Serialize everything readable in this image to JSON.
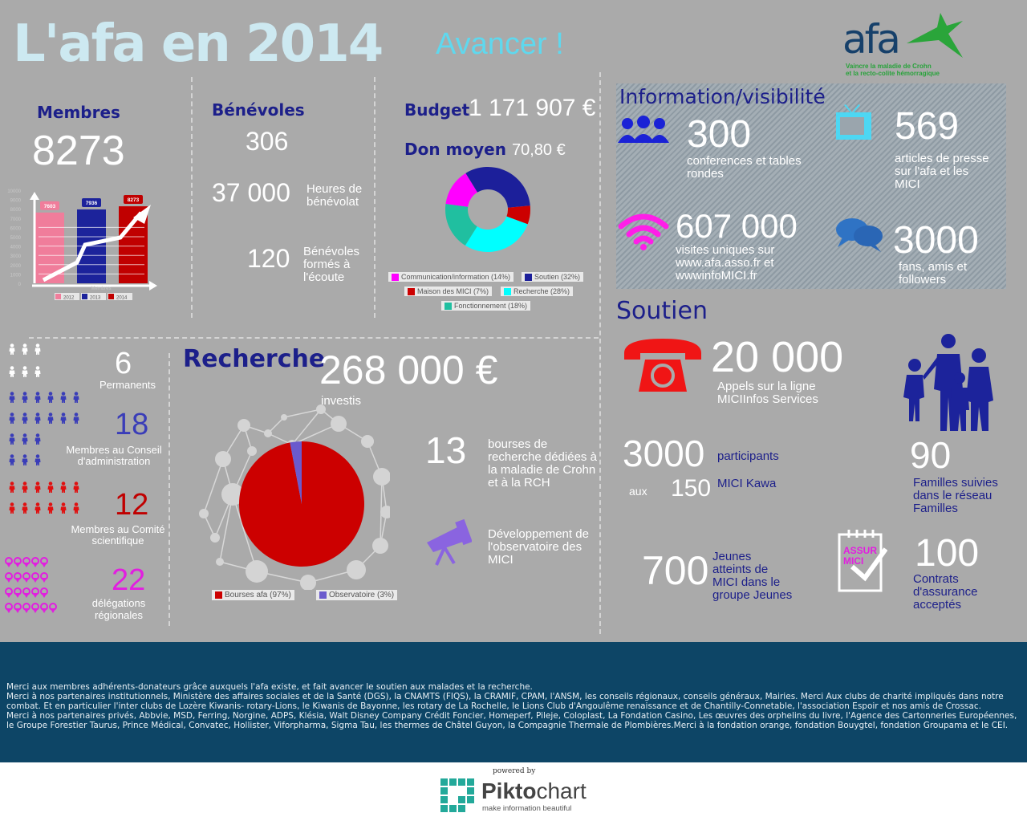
{
  "header": {
    "title": "L'afa en 2014",
    "tagline": "Avancer !"
  },
  "logo": {
    "name": "afa",
    "subtitle_line1": "Vaincre la maladie de Crohn",
    "subtitle_line2": "et la recto-colite hémorragique"
  },
  "membres": {
    "heading": "Membres",
    "value": "8273"
  },
  "benevoles": {
    "heading": "Bénévoles",
    "count": "306",
    "hours_value": "37 000",
    "hours_label": "Heures de bénévolat",
    "trained_value": "120",
    "trained_label": "Bénévoles formés à l'écoute"
  },
  "budget": {
    "heading": "Budget",
    "value": "1 171 907 €",
    "don_heading": "Don moyen",
    "don_value": "70,80 €"
  },
  "information": {
    "heading": "Information/visibilité",
    "items": [
      {
        "value": "300",
        "label": "conferences et tables rondes",
        "icon": "people-icon"
      },
      {
        "value": "569",
        "label": "articles de presse sur l'afa et les MICI",
        "icon": "tv-icon"
      },
      {
        "value": "607 000",
        "label": "visites uniques sur www.afa.asso.fr et wwwinfoMICI.fr",
        "icon": "wifi-icon"
      },
      {
        "value": "3000",
        "label": "fans, amis et followers",
        "icon": "chat-icon"
      }
    ]
  },
  "staff": [
    {
      "value": "6",
      "label": "Permanents",
      "color": "#ffffff"
    },
    {
      "value": "18",
      "label": "Membres au Conseil d'administration",
      "color": "#3a3db8"
    },
    {
      "value": "12",
      "label": "Membres au Comité scientifique",
      "color": "#c00000"
    },
    {
      "value": "22",
      "label": "délégations régionales",
      "color": "#e21ee0"
    }
  ],
  "recherche": {
    "heading": "Recherche",
    "value": "268 000 €",
    "sub": "investis",
    "bourses_value": "13",
    "bourses_label": "bourses de recherche dédiées à la maladie de Crohn et à la RCH",
    "observatoire_label": "Développement de l'observatoire des MICI"
  },
  "soutien": {
    "heading": "Soutien",
    "calls_value": "20 000",
    "calls_label": "Appels sur la ligne MICIInfos Services",
    "participants_value": "3000",
    "participants_label": "participants",
    "aux": "aux",
    "kawa_value": "150",
    "kawa_label": "MICI Kawa",
    "familles_value": "90",
    "familles_label": "Familles suivies dans le réseau Familles",
    "jeunes_value": "700",
    "jeunes_label": "Jeunes atteints de MICI dans le groupe Jeunes",
    "assur_icon_text1": "ASSUR",
    "assur_icon_text2": "MICI",
    "contrats_value": "100",
    "contrats_label": "Contrats d'assurance acceptés"
  },
  "footer": {
    "lines": [
      "Merci aux membres adhérents-donateurs grâce auxquels l'afa existe, et fait avancer le soutien aux malades et la recherche.",
      "Merci à nos partenaires institutionnels, Ministère des affaires sociales et de la Santé (DGS), la CNAMTS (FIQS), la CRAMIF, CPAM, l'ANSM, les conseils régionaux, conseils généraux, Mairies. Merci Aux clubs de charité impliqués dans notre combat. Et en particulier l'inter clubs de Lozère Kiwanis- rotary-Lions, le Kiwanis de Bayonne, les rotary de La Rochelle, le Lions Club d'Angoulême renaissance et de Chantilly-Connetable, l'association Espoir et nos amis de Crossac.",
      "Merci à nos partenaires privés, Abbvie, MSD,  Ferring, Norgine, ADPS, Klésia, Walt Disney Company Crédit Foncier, Homeperf, Pileje, Coloplast, La Fondation Casino, Les œuvres des orphelins du livre, l'Agence des Cartonneries Européennes, le Groupe Forestier Taurus, Prince Médical, Convatec, Hollister, Viforpharma, Sigma Tau, les thermes de Châtel Guyon,  la Compagnie Thermale de Plombières.Merci à la fondation orange, fondation Bouygtel, fondation Groupama et le CEI."
    ]
  },
  "branding": {
    "powered_by": "powered by",
    "brand_bold": "Pikto",
    "brand_light": "chart",
    "tagline": "make information beautiful"
  },
  "chart_data": [
    {
      "type": "bar",
      "title": "",
      "xlabel": "Membres",
      "ylabel": "",
      "categories": [
        "2012",
        "2013",
        "2014"
      ],
      "values": [
        7603,
        7936,
        8273
      ],
      "data_labels": [
        "7603",
        "7936",
        "8273"
      ],
      "colors": [
        "#f07d9b",
        "#1c239b",
        "#c00000"
      ],
      "ylim": [
        0,
        10000
      ],
      "yticks": [
        "0",
        "1000",
        "2000",
        "3000",
        "4000",
        "5000",
        "6000",
        "7000",
        "8000",
        "9000",
        "10000"
      ],
      "legend": [
        "2012",
        "2013",
        "2014"
      ],
      "legend_position": "bottom"
    },
    {
      "type": "pie",
      "variant": "donut",
      "title": "Budget",
      "slices": [
        {
          "label": "Soutien (32%)",
          "value": 32,
          "color": "#1c1f9a"
        },
        {
          "label": "Maison des MICI (7%)",
          "value": 7,
          "color": "#cc0000"
        },
        {
          "label": "Recherche (28%)",
          "value": 28,
          "color": "#00ffff"
        },
        {
          "label": "Fonctionnement (18%)",
          "value": 18,
          "color": "#20bfa0"
        },
        {
          "label": "Communication/information (14%)",
          "value": 14,
          "color": "#ff00ff"
        }
      ],
      "legend_position": "bottom"
    },
    {
      "type": "pie",
      "title": "Recherche",
      "slices": [
        {
          "label": "Bourses afa (97%)",
          "value": 97,
          "color": "#cc0000"
        },
        {
          "label": "Observatoire (3%)",
          "value": 3,
          "color": "#6a5acd"
        }
      ],
      "legend_position": "bottom"
    }
  ]
}
